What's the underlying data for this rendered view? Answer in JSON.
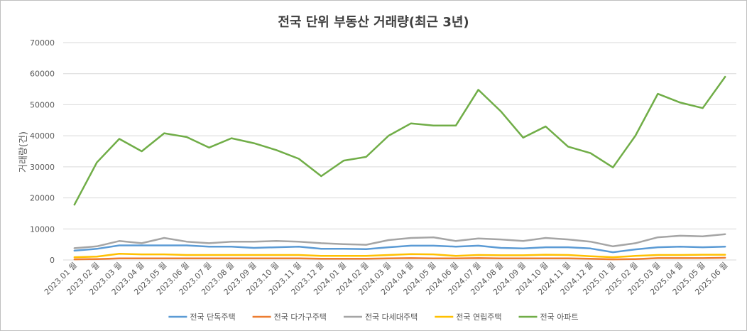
{
  "chart_data": {
    "type": "line",
    "title": "전국 단위 부동산 거래량(최근 3년)",
    "ylabel": "거래량(건)",
    "xlabel": "",
    "ylim": [
      0,
      70000
    ],
    "yticks": [
      "0",
      "10000",
      "20000",
      "30000",
      "40000",
      "50000",
      "60000",
      "70000"
    ],
    "ytick_values": [
      0,
      10000,
      20000,
      30000,
      40000,
      50000,
      60000,
      70000
    ],
    "grid": true,
    "legend_position": "bottom",
    "categories": [
      "2023.01 월",
      "2023.02 월",
      "2023.03 월",
      "2023.04 월",
      "2023.05 월",
      "2023.06 월",
      "2023.07 월",
      "2023.08 월",
      "2023.09 월",
      "2023.10 월",
      "2023.11 월",
      "2023.12 월",
      "2024.01 월",
      "2024.02 월",
      "2024.03 월",
      "2024.04 월",
      "2024.05 월",
      "2024.06 월",
      "2024.07 월",
      "2024.08 월",
      "2024.09 월",
      "2024.10 월",
      "2024.11 월",
      "2024.12 월",
      "2025.01 월",
      "2025.02 월",
      "2025.03 월",
      "2025.04 월",
      "2025.05 월",
      "2025.06 월"
    ],
    "series": [
      {
        "name": "전국 단독주택",
        "color": "#5b9bd5",
        "values": [
          3000,
          3600,
          4700,
          4700,
          4700,
          4700,
          4300,
          4300,
          3900,
          4100,
          4300,
          3600,
          3600,
          3500,
          4100,
          4600,
          4600,
          4300,
          4600,
          3900,
          3700,
          4100,
          4100,
          3700,
          2500,
          3400,
          4100,
          4300,
          4100,
          4300
        ]
      },
      {
        "name": "전국 다가구주택",
        "color": "#ed7d31",
        "values": [
          200,
          300,
          500,
          500,
          500,
          500,
          500,
          500,
          500,
          500,
          500,
          400,
          400,
          400,
          500,
          600,
          500,
          500,
          600,
          500,
          500,
          500,
          500,
          400,
          200,
          300,
          600,
          600,
          600,
          700
        ]
      },
      {
        "name": "전국 다세대주택",
        "color": "#a5a5a5",
        "values": [
          3800,
          4400,
          6100,
          5400,
          7100,
          5900,
          5400,
          5900,
          5900,
          6100,
          5900,
          5400,
          5100,
          4900,
          6400,
          7100,
          7300,
          6100,
          6900,
          6600,
          6100,
          7100,
          6600,
          5900,
          4400,
          5400,
          7300,
          7800,
          7600,
          8300
        ]
      },
      {
        "name": "전국 연립주택",
        "color": "#ffc000",
        "values": [
          900,
          1100,
          2000,
          1800,
          1800,
          1600,
          1600,
          1600,
          1600,
          1600,
          1600,
          1300,
          1300,
          1300,
          1600,
          1900,
          1800,
          1300,
          1600,
          1500,
          1500,
          1700,
          1600,
          1200,
          900,
          1300,
          1600,
          1600,
          1700,
          1700
        ]
      },
      {
        "name": "전국 아파트",
        "color": "#70ad47",
        "values": [
          17800,
          31400,
          39000,
          35000,
          40800,
          39600,
          36200,
          39200,
          37600,
          35400,
          32600,
          27000,
          32000,
          33200,
          40000,
          44000,
          43300,
          43300,
          54800,
          47900,
          39400,
          43000,
          36500,
          34400,
          29800,
          40000,
          53500,
          50700,
          48900,
          59000
        ]
      }
    ]
  }
}
